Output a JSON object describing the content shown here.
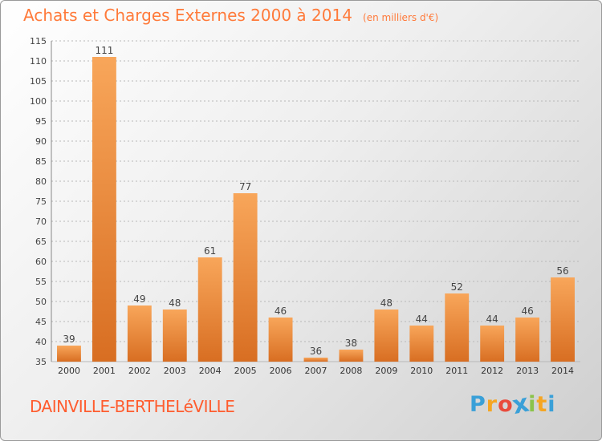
{
  "title": "Achats et Charges Externes 2000 à 2014",
  "subtitle": "(en milliers d'€)",
  "town": "DAINVILLE-BERTHELéVILLE",
  "logo": {
    "letters": [
      "P",
      "r",
      "o",
      "x",
      "i",
      "t",
      "i"
    ],
    "colors": [
      "#3aa0d8",
      "#f5a623",
      "#e94b3c",
      "#3aa0d8",
      "#8bc34a",
      "#f5a623",
      "#3aa0d8"
    ]
  },
  "colors": {
    "bar_light": "#f8a65a",
    "bar_dark": "#d86e22",
    "title": "#ff7a3a",
    "grid": "#b8b8b8"
  },
  "chart_data": {
    "type": "bar",
    "categories": [
      "2000",
      "2001",
      "2002",
      "2003",
      "2004",
      "2005",
      "2006",
      "2007",
      "2008",
      "2009",
      "2010",
      "2011",
      "2012",
      "2013",
      "2014"
    ],
    "values": [
      39,
      111,
      49,
      48,
      61,
      77,
      46,
      36,
      38,
      48,
      44,
      52,
      44,
      46,
      56
    ],
    "ylim": [
      35,
      115
    ],
    "yticks": [
      35,
      40,
      45,
      50,
      55,
      60,
      65,
      70,
      75,
      80,
      85,
      90,
      95,
      100,
      105,
      110,
      115
    ],
    "grid": true,
    "data_labels": true
  }
}
